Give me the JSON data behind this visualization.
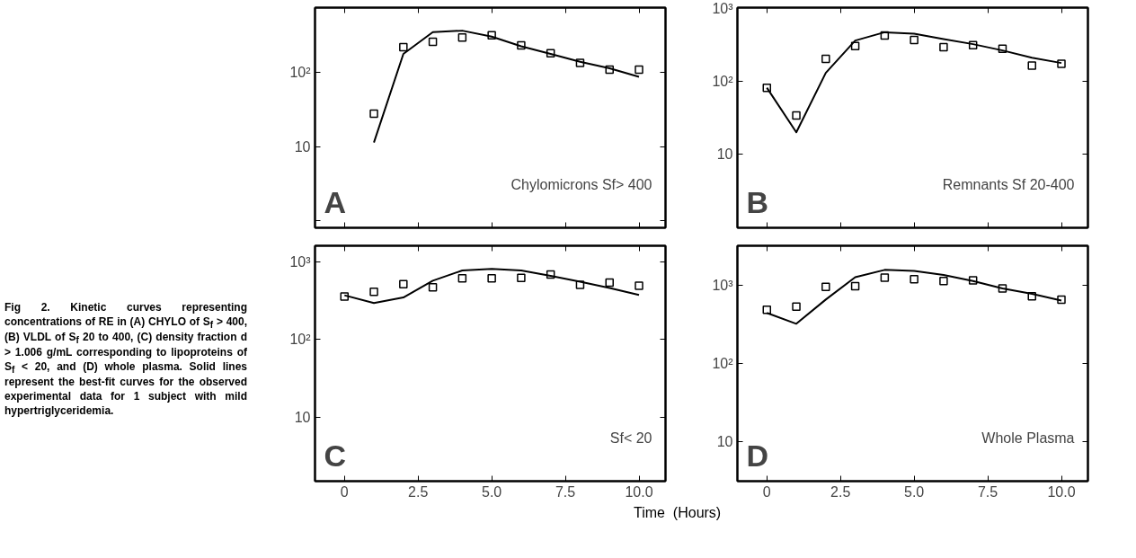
{
  "chart_data": [
    {
      "type": "scatter",
      "title": "A",
      "subtitle": "Chylomicrons Sf> 400",
      "log": "y",
      "marker": "square",
      "grid": false,
      "tick_labels": "y",
      "xlim": [
        -1,
        10.9
      ],
      "xticks": [
        {
          "value": 0,
          "label": null
        },
        {
          "value": 2.5,
          "label": null
        },
        {
          "value": 5,
          "label": null
        },
        {
          "value": 7.5,
          "label": null
        },
        {
          "value": 10,
          "label": null
        }
      ],
      "ylim": [
        0.8,
        760
      ],
      "yticks": [
        {
          "value": 1,
          "label": null
        },
        10,
        {
          "value": 100,
          "label": "10²"
        }
      ],
      "series": [
        {
          "type": "scatter",
          "color": "#000000",
          "x": [
            1,
            2,
            3,
            4,
            5,
            6,
            7,
            8,
            9,
            10
          ],
          "values": [
            28,
            222,
            262,
            299,
            322,
            234,
            184,
            136,
            110,
            110
          ]
        },
        {
          "type": "line",
          "color": "#000000",
          "marker": "none",
          "x": [
            1,
            2,
            3,
            4,
            5,
            6,
            7,
            8,
            9,
            10
          ],
          "values": [
            11.4,
            180,
            354,
            371,
            308,
            228,
            180,
            141,
            115,
            88
          ]
        }
      ]
    },
    {
      "type": "scatter",
      "title": "B",
      "subtitle": "Remnants Sf 20-400",
      "log": "y",
      "marker": "square",
      "grid": false,
      "tick_labels": "y",
      "xlim": [
        -1,
        10.9
      ],
      "xticks": [
        {
          "value": 0,
          "label": null
        },
        {
          "value": 2.5,
          "label": null
        },
        {
          "value": 5,
          "label": null
        },
        {
          "value": 7.5,
          "label": null
        },
        {
          "value": 10,
          "label": null
        }
      ],
      "ylim": [
        1,
        1000
      ],
      "yticks": [
        {
          "value": 1,
          "label": null
        },
        10,
        {
          "value": 100,
          "label": "10²"
        },
        {
          "value": 1000,
          "label": "10³"
        }
      ],
      "series": [
        {
          "type": "scatter",
          "color": "#000000",
          "x": [
            0,
            1,
            2,
            3,
            4,
            5,
            6,
            7,
            8,
            9,
            10
          ],
          "values": [
            81,
            34,
            200,
            300,
            417,
            363,
            289,
            309,
            276,
            162,
            172
          ]
        },
        {
          "type": "line",
          "color": "#000000",
          "marker": "none",
          "x": [
            0,
            1,
            2,
            3,
            4,
            5,
            6,
            7,
            8,
            9,
            10
          ],
          "values": [
            81,
            20,
            129,
            356,
            462,
            441,
            373,
            318,
            261,
            208,
            176
          ]
        }
      ]
    },
    {
      "type": "scatter",
      "title": "C",
      "subtitle": "Sf< 20",
      "log": "y",
      "marker": "square",
      "grid": false,
      "annotations": [
        "Fig 2.  Kinetic curves representing concentrations of RE in (A) CHYLO of S$_{f}$ > 400, (B) VLDL of S$_{f}$ 20 to 400, (C) density fraction d > 1.006 g/mL corresponding to lipoproteins of S$_{f}$ < 20, and (D) whole plasma. Solid lines represent the best-fit curves for the observed experimental data for 1 subject with mild hypertriglyceridemia."
      ],
      "xlim": [
        -1,
        10.9
      ],
      "xticks": [
        0,
        2.5,
        {
          "value": 5,
          "label": "5.0"
        },
        7.5,
        {
          "value": 10,
          "label": "10.0"
        }
      ],
      "ylim": [
        1.5,
        1600
      ],
      "yticks": [
        10,
        {
          "value": 100,
          "label": "10²"
        },
        {
          "value": 1000,
          "label": "10³"
        }
      ],
      "series": [
        {
          "type": "scatter",
          "color": "#000000",
          "x": [
            0,
            1,
            2,
            3,
            4,
            5,
            6,
            7,
            8,
            9,
            10
          ],
          "values": [
            356,
            410,
            513,
            467,
            608,
            608,
            619,
            681,
            504,
            538,
            490
          ]
        },
        {
          "type": "line",
          "color": "#000000",
          "marker": "none",
          "x": [
            0,
            1,
            2,
            3,
            4,
            5,
            6,
            7,
            8,
            9,
            10
          ],
          "values": [
            369,
            294,
            346,
            569,
            769,
            805,
            769,
            655,
            553,
            458,
            373
          ]
        }
      ]
    },
    {
      "type": "scatter",
      "title": "D",
      "subtitle": "Whole Plasma",
      "xlabel": "Time  (Hours)",
      "log": "y",
      "marker": "square",
      "grid": false,
      "xlim": [
        -1,
        10.9
      ],
      "xticks": [
        0,
        2.5,
        {
          "value": 5,
          "label": "5.0"
        },
        7.5,
        {
          "value": 10,
          "label": "10.0"
        }
      ],
      "ylim": [
        3.1,
        3200
      ],
      "yticks": [
        10,
        {
          "value": 100,
          "label": "10²"
        },
        {
          "value": 1000,
          "label": "10³"
        }
      ],
      "series": [
        {
          "type": "scatter",
          "color": "#000000",
          "x": [
            0,
            1,
            2,
            3,
            4,
            5,
            6,
            7,
            8,
            9,
            10
          ],
          "values": [
            485,
            533,
            955,
            972,
            1253,
            1196,
            1130,
            1151,
            910,
            719,
            655
          ]
        },
        {
          "type": "line",
          "color": "#000000",
          "marker": "none",
          "x": [
            0,
            1,
            2,
            3,
            4,
            5,
            6,
            7,
            8,
            9,
            10
          ],
          "values": [
            442,
            321,
            655,
            1265,
            1571,
            1527,
            1351,
            1130,
            910,
            776,
            637
          ]
        }
      ]
    }
  ]
}
